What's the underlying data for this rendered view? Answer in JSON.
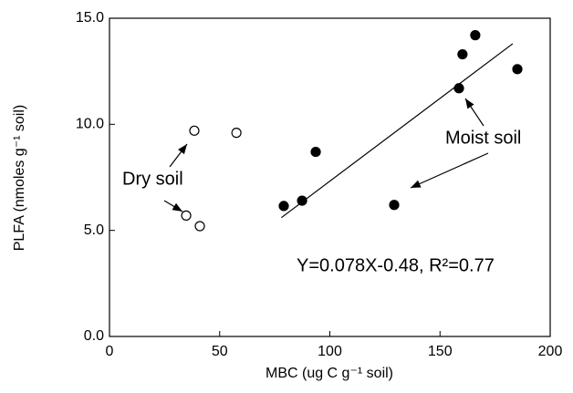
{
  "chart_data": {
    "type": "scatter",
    "x_label": "MBC (ug C g⁻¹ soil)",
    "y_label": "PLFA (nmoles g⁻¹ soil)",
    "xlim": [
      0,
      200
    ],
    "xticks": [
      0,
      50,
      100,
      150,
      200
    ],
    "ylim": [
      0,
      15
    ],
    "yticks": [
      {
        "value": 0,
        "label": "0.0"
      },
      {
        "value": 5,
        "label": "5.0"
      },
      {
        "value": 10,
        "label": "10.0"
      },
      {
        "value": 15,
        "label": "15.0"
      }
    ],
    "series": [
      {
        "marker": "open",
        "color": "#000000",
        "x": [
          38.5,
          57.6,
          34.8,
          41
        ],
        "values": [
          9.7,
          9.6,
          5.7,
          5.2
        ]
      },
      {
        "marker": "filled",
        "color": "#000000",
        "x": [
          79.1,
          87.4,
          93.6,
          129.2,
          158.6,
          160.2,
          166,
          185.1
        ],
        "values": [
          6.15,
          6.4,
          8.7,
          6.2,
          11.7,
          13.3,
          14.2,
          12.6
        ]
      }
    ],
    "fit": {
      "x": [
        78,
        183
      ],
      "values": [
        5.6,
        13.8
      ]
    },
    "annotations": [
      "Dry soil",
      "Moist soil",
      "Y=0.078X-0.48, R²=0.77"
    ]
  }
}
